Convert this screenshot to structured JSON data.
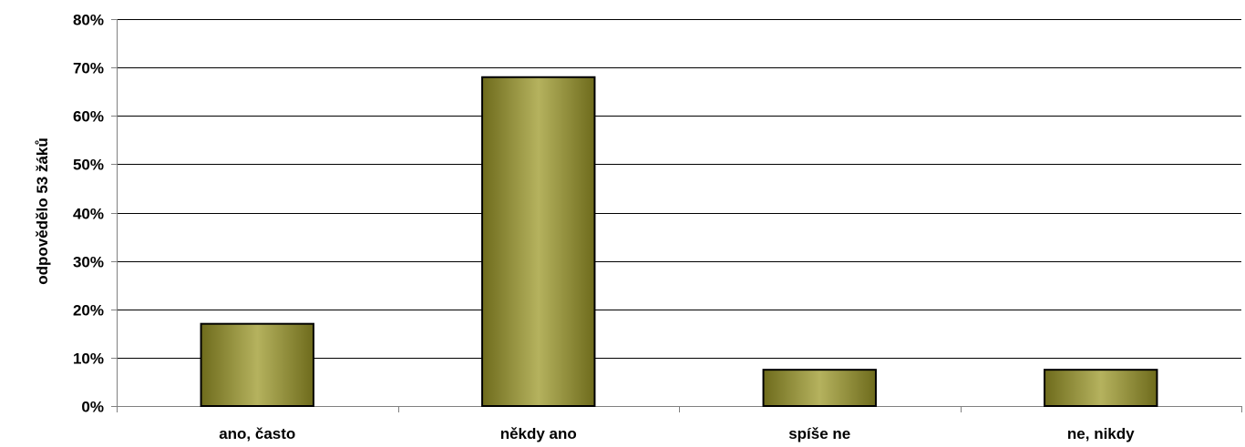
{
  "chart_data": {
    "type": "bar",
    "title": "",
    "xlabel": "",
    "ylabel": "odpovědělo 53 žáků",
    "categories": [
      "ano, často",
      "někdy ano",
      "spíše ne",
      "ne, nikdy"
    ],
    "values": [
      17,
      68,
      7.5,
      7.5
    ],
    "unit": "%",
    "ylim": [
      0,
      80
    ],
    "yticks": [
      0,
      10,
      20,
      30,
      40,
      50,
      60,
      70,
      80
    ],
    "ytick_labels": [
      "0%",
      "10%",
      "20%",
      "30%",
      "40%",
      "50%",
      "60%",
      "70%",
      "80%"
    ],
    "grid": true,
    "legend": "none",
    "colors": {
      "bar_dark": "#6e6b1c",
      "bar_light": "#b5b25e",
      "bar_outline": "#000000",
      "grid": "#000000",
      "axis": "#808080"
    }
  }
}
